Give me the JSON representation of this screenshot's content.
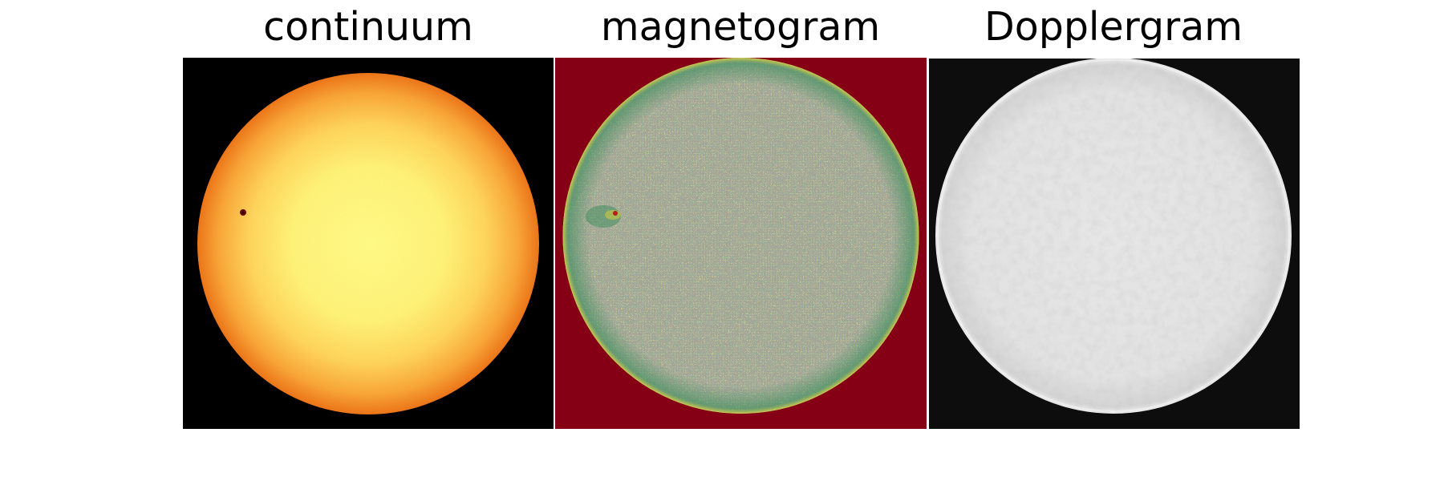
{
  "panels": [
    {
      "id": "continuum",
      "title": "continuum"
    },
    {
      "id": "magnetogram",
      "title": "magnetogram"
    },
    {
      "id": "dopplergram",
      "title": "Dopplergram"
    }
  ],
  "colors": {
    "page_background": "#ffffff",
    "continuum_background": "#000000",
    "continuum_disk_center": "#fffb86",
    "continuum_disk_limb": "#ec7418",
    "sunspot": "#6a0a0a",
    "magnetogram_background": "#860015",
    "magnetogram_noise_gray": "#a3a39a",
    "magnetogram_noise_yellow": "#d6cf3a",
    "magnetogram_noise_green": "#2f8a56",
    "dopplergram_background": "#0d0d0d",
    "dopplergram_disk": "#e2e2e2"
  }
}
